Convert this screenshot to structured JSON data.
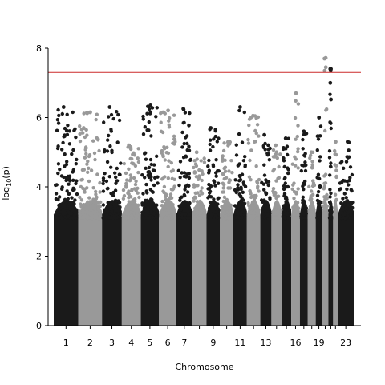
{
  "chart_data": {
    "type": "scatter",
    "subtype": "manhattan",
    "title": "",
    "xlabel": "Chromosome",
    "ylabel_main": "−log",
    "ylabel_sub": "10",
    "ylabel_tail": "(p)",
    "ylim": [
      0,
      8
    ],
    "yticks": [
      "0",
      "2",
      "4",
      "6",
      "8"
    ],
    "significance_line": 7.3,
    "colors": {
      "odd": "#1a1a1a",
      "even": "#999999",
      "threshold": "#cc2a2a"
    },
    "grid": false,
    "chromosome_labels": [
      "1",
      "2",
      "3",
      "4",
      "5",
      "6",
      "7",
      "9",
      "11",
      "13",
      "16",
      "19",
      "23"
    ],
    "chromosomes": [
      {
        "chr": 1,
        "label": "1",
        "max": 6.3
      },
      {
        "chr": 2,
        "label": "2",
        "max": 6.15
      },
      {
        "chr": 3,
        "label": "3",
        "max": 6.3
      },
      {
        "chr": 4,
        "label": "4",
        "max": 5.2
      },
      {
        "chr": 5,
        "label": "5",
        "max": 6.35
      },
      {
        "chr": 6,
        "label": "6",
        "max": 6.2
      },
      {
        "chr": 7,
        "label": "7",
        "max": 6.25
      },
      {
        "chr": 8,
        "label": "",
        "max": 5.0
      },
      {
        "chr": 9,
        "label": "9",
        "max": 5.7
      },
      {
        "chr": 10,
        "label": "",
        "max": 5.3
      },
      {
        "chr": 11,
        "label": "11",
        "max": 6.3
      },
      {
        "chr": 12,
        "label": "",
        "max": 6.05
      },
      {
        "chr": 13,
        "label": "13",
        "max": 5.5
      },
      {
        "chr": 14,
        "label": "",
        "max": 5.2
      },
      {
        "chr": 15,
        "label": "",
        "max": 5.4
      },
      {
        "chr": 16,
        "label": "16",
        "max": 6.7
      },
      {
        "chr": 17,
        "label": "",
        "max": 5.6
      },
      {
        "chr": 18,
        "label": "",
        "max": 5.0
      },
      {
        "chr": 19,
        "label": "19",
        "max": 6.0
      },
      {
        "chr": 20,
        "label": "",
        "max": 7.7
      },
      {
        "chr": 21,
        "label": "",
        "max": 7.4
      },
      {
        "chr": 22,
        "label": "",
        "max": 5.3
      },
      {
        "chr": 23,
        "label": "23",
        "max": 5.3
      }
    ],
    "top_hits": [
      {
        "chr": 20,
        "y": 7.72
      },
      {
        "chr": 20,
        "y": 7.45
      },
      {
        "chr": 20,
        "y": 7.35
      },
      {
        "chr": 21,
        "y": 7.4
      },
      {
        "chr": 21,
        "y": 7.35
      },
      {
        "chr": 21,
        "y": 7.0
      },
      {
        "chr": 21,
        "y": 6.52
      }
    ]
  }
}
